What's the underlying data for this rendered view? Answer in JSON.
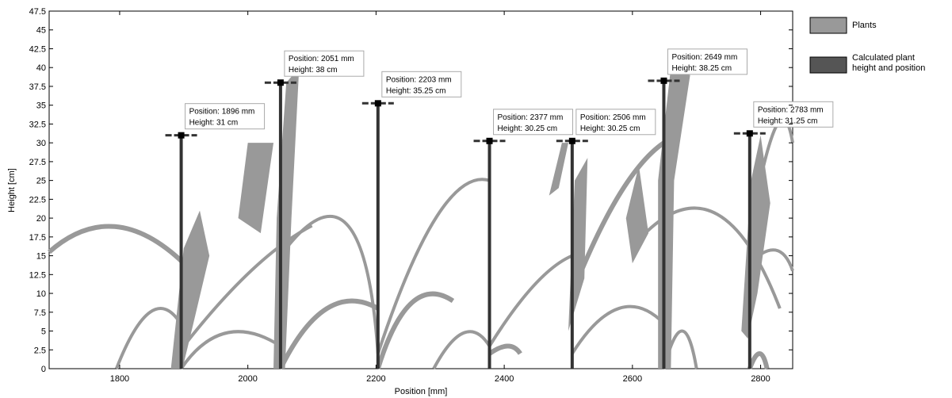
{
  "chart_data": {
    "type": "scatter",
    "xlabel": "Position [mm]",
    "ylabel": "Height [cm]",
    "xlim": [
      1690,
      2850
    ],
    "ylim": [
      0,
      47.5
    ],
    "x_ticks": [
      1800,
      2000,
      2200,
      2400,
      2600,
      2800
    ],
    "y_ticks": [
      0,
      2.5,
      5,
      7.5,
      10,
      12.5,
      15,
      17.5,
      20,
      22.5,
      25,
      27.5,
      30,
      32.5,
      35,
      37.5,
      40,
      42.5,
      45,
      47.5
    ],
    "y_tick_labels": [
      "0",
      "2.5",
      "5",
      "7.5",
      "10",
      "12.5",
      "15",
      "17.5",
      "20",
      "22.5",
      "25",
      "27.5",
      "30",
      "32.5",
      "35",
      "37.5",
      "40",
      "42.5",
      "45",
      "47.5"
    ],
    "grid": false,
    "legend": {
      "placement": "outside-right",
      "entries": [
        {
          "label": "Plants",
          "color": "#999999"
        },
        {
          "label": "Calculated plant height and position",
          "label_lines": [
            "Calculated plant",
            "height and position"
          ],
          "color": "#555555"
        }
      ]
    },
    "series": [
      {
        "name": "Calculated plant height and position",
        "points": [
          {
            "x": 1896,
            "y": 31,
            "label_position": "Position: 1896 mm",
            "label_height": "Height: 31 cm"
          },
          {
            "x": 2051,
            "y": 38,
            "label_position": "Position: 2051 mm",
            "label_height": "Height: 38 cm"
          },
          {
            "x": 2203,
            "y": 35.25,
            "label_position": "Position: 2203 mm",
            "label_height": "Height: 35.25 cm"
          },
          {
            "x": 2377,
            "y": 30.25,
            "label_position": "Position: 2377 mm",
            "label_height": "Height: 30.25 cm"
          },
          {
            "x": 2506,
            "y": 30.25,
            "label_position": "Position: 2506 mm",
            "label_height": "Height: 30.25 cm"
          },
          {
            "x": 2649,
            "y": 38.25,
            "label_position": "Position: 2649 mm",
            "label_height": "Height: 38.25 cm"
          },
          {
            "x": 2783,
            "y": 31.25,
            "label_position": "Position: 2783 mm",
            "label_height": "Height: 31.25 cm"
          }
        ]
      }
    ],
    "plants_color": "#999999",
    "marker_color": "#333333"
  }
}
